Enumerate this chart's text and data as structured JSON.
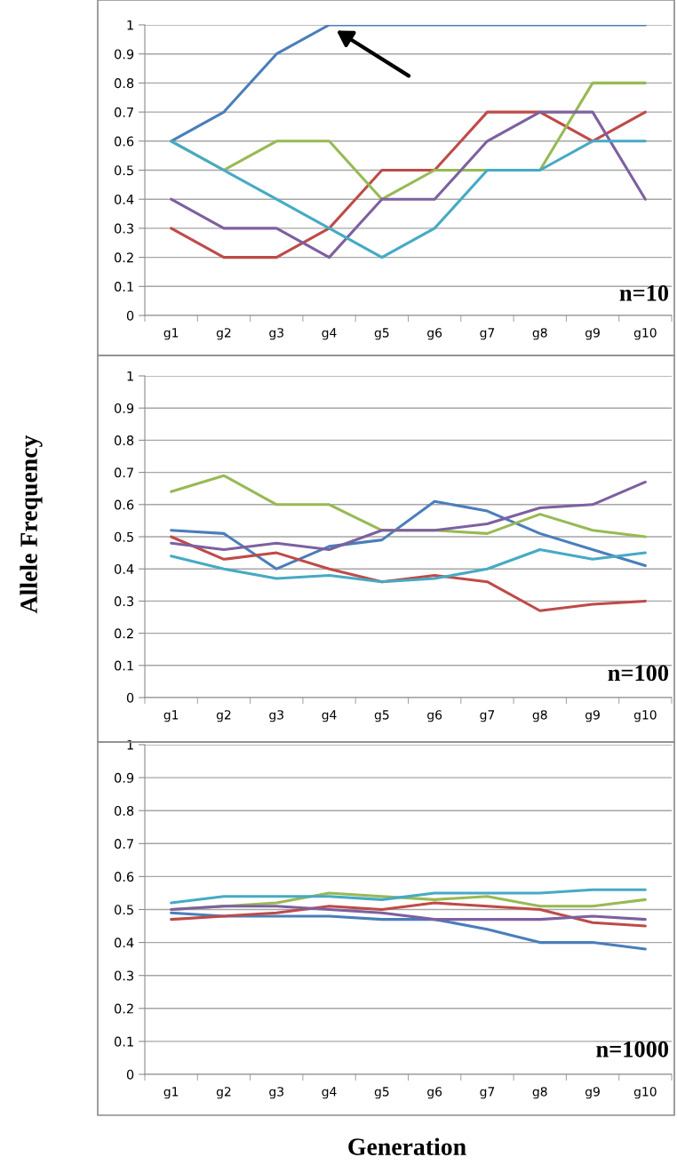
{
  "chart_data": [
    {
      "type": "line",
      "categories": [
        "g1",
        "g2",
        "g3",
        "g4",
        "g5",
        "g6",
        "g7",
        "g8",
        "g9",
        "g10"
      ],
      "ylim": [
        0,
        1
      ],
      "yticks": [
        0,
        0.1,
        0.2,
        0.3,
        0.4,
        0.5,
        0.6,
        0.7,
        0.8,
        0.9,
        1
      ],
      "grid": "y",
      "annotations": [
        "n=10"
      ],
      "series": [
        {
          "color": "#4a7ebb",
          "values": [
            0.6,
            0.7,
            0.9,
            1,
            1,
            1,
            1,
            1,
            1,
            1
          ]
        },
        {
          "color": "#be4b48",
          "values": [
            0.3,
            0.2,
            0.2,
            0.3,
            0.5,
            0.5,
            0.7,
            0.7,
            0.6,
            0.7
          ]
        },
        {
          "color": "#98b954",
          "values": [
            0.6,
            0.5,
            0.6,
            0.6,
            0.4,
            0.5,
            0.5,
            0.5,
            0.8,
            0.8
          ]
        },
        {
          "color": "#7d60a0",
          "values": [
            0.4,
            0.3,
            0.3,
            0.2,
            0.4,
            0.4,
            0.6,
            0.7,
            0.7,
            0.4
          ]
        },
        {
          "color": "#46aac5",
          "values": [
            0.6,
            0.5,
            0.4,
            0.3,
            0.2,
            0.3,
            0.5,
            0.5,
            0.6,
            0.6
          ]
        }
      ]
    },
    {
      "type": "line",
      "categories": [
        "g1",
        "g2",
        "g3",
        "g4",
        "g5",
        "g6",
        "g7",
        "g8",
        "g9",
        "g10"
      ],
      "ylim": [
        0,
        1
      ],
      "yticks": [
        0,
        0.1,
        0.2,
        0.3,
        0.4,
        0.5,
        0.6,
        0.7,
        0.8,
        0.9,
        1
      ],
      "grid": "y",
      "ylabel": "Allele Frequency",
      "annotations": [
        "n=100"
      ],
      "series": [
        {
          "color": "#4a7ebb",
          "values": [
            0.52,
            0.51,
            0.4,
            0.47,
            0.49,
            0.61,
            0.58,
            0.51,
            0.46,
            0.41
          ]
        },
        {
          "color": "#be4b48",
          "values": [
            0.5,
            0.43,
            0.45,
            0.4,
            0.36,
            0.38,
            0.36,
            0.27,
            0.29,
            0.3
          ]
        },
        {
          "color": "#98b954",
          "values": [
            0.64,
            0.69,
            0.6,
            0.6,
            0.52,
            0.52,
            0.51,
            0.57,
            0.52,
            0.5
          ]
        },
        {
          "color": "#7d60a0",
          "values": [
            0.48,
            0.46,
            0.48,
            0.46,
            0.52,
            0.52,
            0.54,
            0.59,
            0.6,
            0.67
          ]
        },
        {
          "color": "#46aac5",
          "values": [
            0.44,
            0.4,
            0.37,
            0.38,
            0.36,
            0.37,
            0.4,
            0.46,
            0.43,
            0.45
          ]
        }
      ]
    },
    {
      "type": "line",
      "categories": [
        "g1",
        "g2",
        "g3",
        "g4",
        "g5",
        "g6",
        "g7",
        "g8",
        "g9",
        "g10"
      ],
      "ylim": [
        0,
        1
      ],
      "yticks": [
        0,
        0.1,
        0.2,
        0.3,
        0.4,
        0.5,
        0.6,
        0.7,
        0.8,
        0.9,
        1
      ],
      "grid": "y",
      "xlabel": "Generation",
      "annotations": [
        "n=1000"
      ],
      "series": [
        {
          "color": "#4a7ebb",
          "values": [
            0.49,
            0.48,
            0.48,
            0.48,
            0.47,
            0.47,
            0.44,
            0.4,
            0.4,
            0.38
          ]
        },
        {
          "color": "#be4b48",
          "values": [
            0.47,
            0.48,
            0.49,
            0.51,
            0.5,
            0.52,
            0.51,
            0.5,
            0.46,
            0.45
          ]
        },
        {
          "color": "#98b954",
          "values": [
            0.5,
            0.51,
            0.52,
            0.55,
            0.54,
            0.53,
            0.54,
            0.51,
            0.51,
            0.53
          ]
        },
        {
          "color": "#7d60a0",
          "values": [
            0.5,
            0.51,
            0.51,
            0.5,
            0.49,
            0.47,
            0.47,
            0.47,
            0.48,
            0.47
          ]
        },
        {
          "color": "#46aac5",
          "values": [
            0.52,
            0.54,
            0.54,
            0.54,
            0.53,
            0.55,
            0.55,
            0.55,
            0.56,
            0.56
          ]
        }
      ]
    }
  ]
}
